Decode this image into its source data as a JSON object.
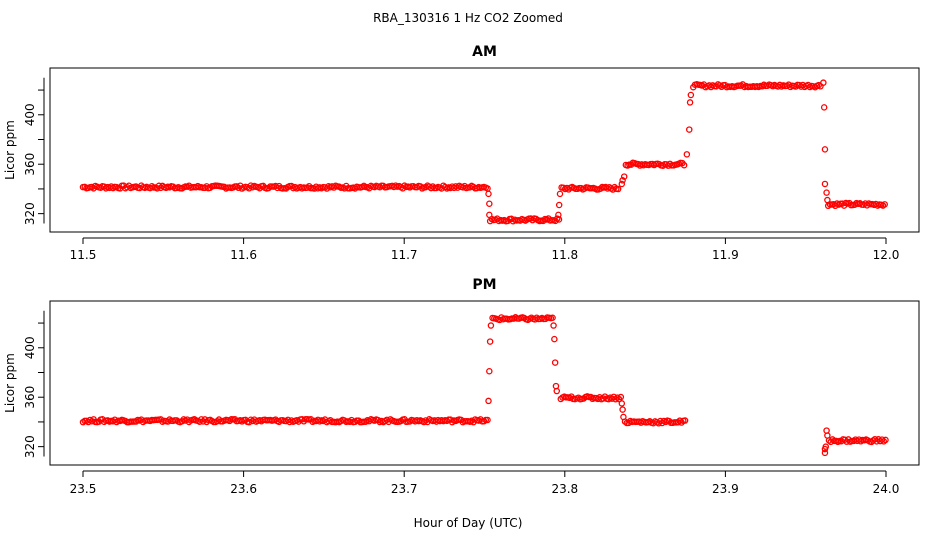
{
  "title": "RBA_130316  1 Hz CO2 Zoomed",
  "xlabel": "Hour of Day (UTC)",
  "colors": {
    "points": "#ff0000",
    "axis": "#000000"
  },
  "chart_data": [
    {
      "type": "scatter",
      "title": "AM",
      "ylabel": "Licor ppm",
      "xlim": [
        11.5,
        12.0
      ],
      "ylim": [
        310,
        433
      ],
      "xticks": [
        "11.5",
        "11.6",
        "11.7",
        "11.8",
        "11.9",
        "12.0"
      ],
      "yticks": [
        "320",
        "360",
        "400"
      ],
      "segments": [
        {
          "x": [
            11.5,
            11.7525
          ],
          "y": 341.5
        },
        {
          "x": [
            11.7535,
            11.7965
          ],
          "y": 315
        },
        {
          "x": [
            11.798,
            11.834
          ],
          "y": 340.5
        },
        {
          "x": [
            11.838,
            11.875
          ],
          "y": 360
        },
        {
          "x": [
            11.88,
            11.96
          ],
          "y": 423.5
        },
        {
          "x": [
            11.964,
            12.0
          ],
          "y": 327.5
        }
      ],
      "transitions": [
        {
          "x": 11.7525,
          "y": 336
        },
        {
          "x": 11.753,
          "y": 328
        },
        {
          "x": 11.753,
          "y": 319
        },
        {
          "x": 11.796,
          "y": 319
        },
        {
          "x": 11.7965,
          "y": 327
        },
        {
          "x": 11.797,
          "y": 336
        },
        {
          "x": 11.8355,
          "y": 344
        },
        {
          "x": 11.836,
          "y": 347
        },
        {
          "x": 11.837,
          "y": 350
        },
        {
          "x": 11.876,
          "y": 368
        },
        {
          "x": 11.8775,
          "y": 388
        },
        {
          "x": 11.878,
          "y": 410
        },
        {
          "x": 11.8785,
          "y": 416
        },
        {
          "x": 11.961,
          "y": 426
        },
        {
          "x": 11.9615,
          "y": 406
        },
        {
          "x": 11.962,
          "y": 372
        },
        {
          "x": 11.962,
          "y": 344
        },
        {
          "x": 11.963,
          "y": 337
        },
        {
          "x": 11.9635,
          "y": 331
        }
      ]
    },
    {
      "type": "scatter",
      "title": "PM",
      "ylabel": "Licor ppm",
      "xlim": [
        23.5,
        24.0
      ],
      "ylim": [
        310,
        433
      ],
      "xticks": [
        "23.5",
        "23.6",
        "23.7",
        "23.8",
        "23.9",
        "24.0"
      ],
      "yticks": [
        "320",
        "360",
        "400"
      ],
      "segments": [
        {
          "x": [
            23.5,
            23.7525
          ],
          "y": 341
        },
        {
          "x": [
            23.755,
            23.7925
          ],
          "y": 423.5
        },
        {
          "x": [
            23.7975,
            23.8355
          ],
          "y": 359.5
        },
        {
          "x": [
            23.8375,
            23.875
          ],
          "y": 340
        },
        {
          "x": [
            23.9645,
            24.0
          ],
          "y": 325
        }
      ],
      "transitions": [
        {
          "x": 23.7525,
          "y": 357
        },
        {
          "x": 23.753,
          "y": 381
        },
        {
          "x": 23.7535,
          "y": 405
        },
        {
          "x": 23.754,
          "y": 418
        },
        {
          "x": 23.793,
          "y": 418
        },
        {
          "x": 23.7935,
          "y": 407
        },
        {
          "x": 23.794,
          "y": 388
        },
        {
          "x": 23.7945,
          "y": 369
        },
        {
          "x": 23.795,
          "y": 365
        },
        {
          "x": 23.8355,
          "y": 355
        },
        {
          "x": 23.836,
          "y": 350
        },
        {
          "x": 23.8365,
          "y": 344
        },
        {
          "x": 23.962,
          "y": 315
        },
        {
          "x": 23.962,
          "y": 318
        },
        {
          "x": 23.9625,
          "y": 320
        },
        {
          "x": 23.963,
          "y": 333
        },
        {
          "x": 23.9635,
          "y": 329
        }
      ]
    }
  ]
}
